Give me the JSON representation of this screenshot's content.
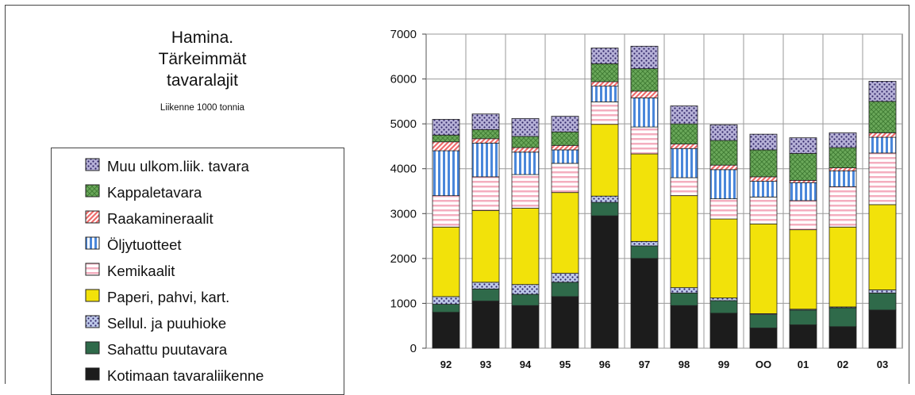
{
  "chart_data": {
    "type": "bar",
    "stacked": true,
    "title": "Hamina.\nTärkeimmät\ntavaralajit",
    "subtitle": "Liikenne 1000 tonnia",
    "xlabel": "",
    "ylabel": "",
    "ylim": [
      0,
      7000
    ],
    "y_ticks": [
      "0",
      "1000",
      "2000",
      "3000",
      "4000",
      "5000",
      "6000",
      "7000"
    ],
    "categories": [
      "92",
      "93",
      "94",
      "95",
      "96",
      "97",
      "98",
      "99",
      "OO",
      "01",
      "02",
      "03"
    ],
    "grid": true,
    "legend_position": "left",
    "series": [
      {
        "name": "Kotimaan tavaraliikenne",
        "color": "#1c1c1c",
        "pattern": "solid",
        "values": [
          800,
          1050,
          950,
          1150,
          2950,
          2000,
          950,
          780,
          450,
          520,
          480,
          850
        ]
      },
      {
        "name": "Sahattu puutavara",
        "color": "#2f6a4a",
        "pattern": "solid",
        "values": [
          180,
          270,
          250,
          320,
          300,
          280,
          280,
          280,
          300,
          330,
          420,
          380
        ]
      },
      {
        "name": "Sellul. ja puuhioke",
        "color": "#8a9ed8",
        "pattern": "dots",
        "values": [
          170,
          150,
          220,
          200,
          140,
          100,
          120,
          60,
          20,
          20,
          20,
          70
        ]
      },
      {
        "name": "Paperi, pahvi, kart.",
        "color": "#f2e20a",
        "pattern": "solid",
        "values": [
          1550,
          1600,
          1700,
          1800,
          1600,
          1950,
          2050,
          1760,
          2000,
          1770,
          1780,
          1900
        ]
      },
      {
        "name": "Kemikaalit",
        "color": "#f4aebf",
        "pattern": "hstripes",
        "values": [
          700,
          750,
          750,
          650,
          500,
          600,
          400,
          450,
          600,
          650,
          900,
          1150
        ]
      },
      {
        "name": "Öljytuotteet",
        "color": "#4a87da",
        "pattern": "vstripes",
        "values": [
          1000,
          750,
          500,
          300,
          350,
          650,
          650,
          650,
          350,
          400,
          350,
          350
        ]
      },
      {
        "name": "Raakamineraalit",
        "color": "#ee6b6b",
        "pattern": "diag",
        "values": [
          200,
          100,
          100,
          100,
          100,
          150,
          100,
          100,
          100,
          50,
          70,
          100
        ]
      },
      {
        "name": "Kappaletavara",
        "color": "#6aa85a",
        "pattern": "crosshatch",
        "values": [
          150,
          200,
          250,
          300,
          400,
          500,
          450,
          550,
          600,
          600,
          450,
          700
        ]
      },
      {
        "name": "Muu ulkom.liik. tavara",
        "color": "#7b72b8",
        "pattern": "dots",
        "values": [
          350,
          350,
          400,
          350,
          350,
          500,
          400,
          350,
          350,
          350,
          330,
          450
        ]
      }
    ]
  }
}
